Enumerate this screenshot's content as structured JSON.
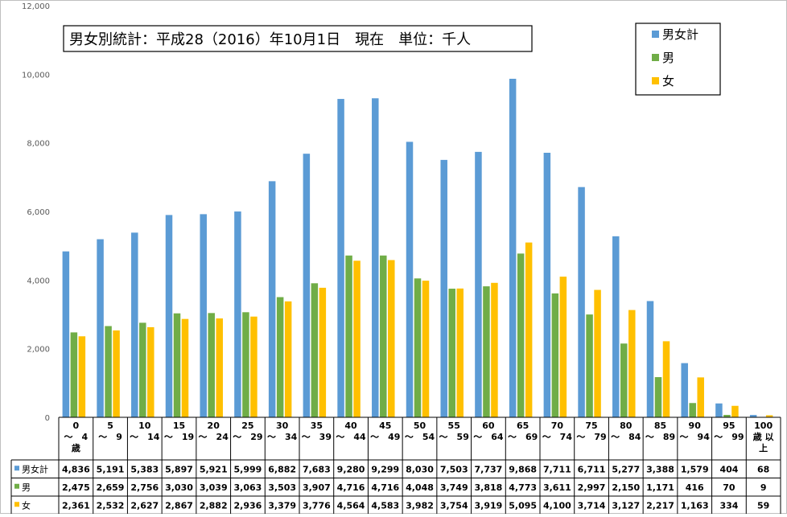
{
  "chart_data": {
    "type": "bar",
    "title": "男女別統計：平成28（2016）年10月1日　現在　単位：千人",
    "ylim": [
      0,
      12000
    ],
    "yticks": [
      "0",
      "2,000",
      "4,000",
      "6,000",
      "8,000",
      "10,000",
      "12,000"
    ],
    "yticks_values": [
      0,
      2000,
      4000,
      6000,
      8000,
      10000,
      12000
    ],
    "grid": false,
    "legend_position": "top-right",
    "categories": [
      [
        "0",
        "～　4",
        "歳"
      ],
      [
        "5",
        "～　9"
      ],
      [
        "10",
        "～　14"
      ],
      [
        "15",
        "～　19"
      ],
      [
        "20",
        "～　24"
      ],
      [
        "25",
        "～　29"
      ],
      [
        "30",
        "～　34"
      ],
      [
        "35",
        "～　39"
      ],
      [
        "40",
        "～　44"
      ],
      [
        "45",
        "～　49"
      ],
      [
        "50",
        "～　54"
      ],
      [
        "55",
        "～　59"
      ],
      [
        "60",
        "～　64"
      ],
      [
        "65",
        "～　69"
      ],
      [
        "70",
        "～　74"
      ],
      [
        "75",
        "～　79"
      ],
      [
        "80",
        "～　84"
      ],
      [
        "85",
        "～　89"
      ],
      [
        "90",
        "～　94"
      ],
      [
        "95",
        "～　99"
      ],
      [
        "100",
        "歳 以",
        "上"
      ]
    ],
    "series": [
      {
        "name": "男女計",
        "color": "#5B9BD5",
        "values": [
          4836,
          5191,
          5383,
          5897,
          5921,
          5999,
          6882,
          7683,
          9280,
          9299,
          8030,
          7503,
          7737,
          9868,
          7711,
          6711,
          5277,
          3388,
          1579,
          404,
          68
        ],
        "labels": [
          "4,836",
          "5,191",
          "5,383",
          "5,897",
          "5,921",
          "5,999",
          "6,882",
          "7,683",
          "9,280",
          "9,299",
          "8,030",
          "7,503",
          "7,737",
          "9,868",
          "7,711",
          "6,711",
          "5,277",
          "3,388",
          "1,579",
          "404",
          "68"
        ]
      },
      {
        "name": "男",
        "color": "#70AD47",
        "values": [
          2475,
          2659,
          2756,
          3030,
          3039,
          3063,
          3503,
          3907,
          4716,
          4716,
          4048,
          3749,
          3818,
          4773,
          3611,
          2997,
          2150,
          1171,
          416,
          70,
          9
        ],
        "labels": [
          "2,475",
          "2,659",
          "2,756",
          "3,030",
          "3,039",
          "3,063",
          "3,503",
          "3,907",
          "4,716",
          "4,716",
          "4,048",
          "3,749",
          "3,818",
          "4,773",
          "3,611",
          "2,997",
          "2,150",
          "1,171",
          "416",
          "70",
          "9"
        ]
      },
      {
        "name": "女",
        "color": "#FFC000",
        "values": [
          2361,
          2532,
          2627,
          2867,
          2882,
          2936,
          3379,
          3776,
          4564,
          4583,
          3982,
          3754,
          3919,
          5095,
          4100,
          3714,
          3127,
          2217,
          1163,
          334,
          59
        ],
        "labels": [
          "2,361",
          "2,532",
          "2,627",
          "2,867",
          "2,882",
          "2,936",
          "3,379",
          "3,776",
          "4,564",
          "4,583",
          "3,982",
          "3,754",
          "3,919",
          "5,095",
          "4,100",
          "3,714",
          "3,127",
          "2,217",
          "1,163",
          "334",
          "59"
        ]
      }
    ]
  }
}
